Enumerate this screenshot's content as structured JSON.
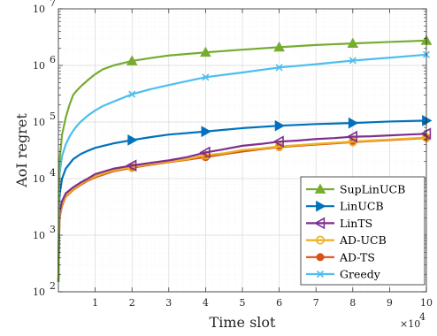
{
  "chart_data": {
    "type": "line",
    "title": "",
    "xlabel": "Time slot",
    "ylabel": "AoI regret",
    "x_multiplier_label": "×10",
    "x_multiplier_exp": "4",
    "xlim": [
      0,
      100000
    ],
    "ylim": [
      100,
      10000000
    ],
    "y_scale": "log",
    "grid": true,
    "legend_position": "bottom-right",
    "x_ticks": [
      {
        "value": 10000,
        "label": "1"
      },
      {
        "value": 20000,
        "label": "2"
      },
      {
        "value": 30000,
        "label": "3"
      },
      {
        "value": 40000,
        "label": "4"
      },
      {
        "value": 50000,
        "label": "5"
      },
      {
        "value": 60000,
        "label": "6"
      },
      {
        "value": 70000,
        "label": "7"
      },
      {
        "value": 80000,
        "label": "8"
      },
      {
        "value": 90000,
        "label": "9"
      },
      {
        "value": 100000,
        "label": "10"
      }
    ],
    "y_ticks": [
      {
        "value": 100,
        "base": "10",
        "exp": "2"
      },
      {
        "value": 1000,
        "base": "10",
        "exp": "3"
      },
      {
        "value": 10000,
        "base": "10",
        "exp": "4"
      },
      {
        "value": 100000,
        "base": "10",
        "exp": "5"
      },
      {
        "value": 1000000,
        "base": "10",
        "exp": "6"
      },
      {
        "value": 10000000,
        "base": "10",
        "exp": "7"
      }
    ],
    "series": [
      {
        "name": "SupLinUCB",
        "color": "#77AC30",
        "marker": "triangle-up",
        "x": [
          0,
          300,
          1000,
          2000,
          3000,
          4000,
          5000,
          6000,
          8000,
          10000,
          12000,
          15000,
          20000,
          25000,
          30000,
          40000,
          50000,
          60000,
          70000,
          80000,
          90000,
          100000
        ],
        "y": [
          150,
          20000,
          60000,
          120000,
          200000,
          300000,
          360000,
          420000,
          550000,
          700000,
          850000,
          1000000,
          1200000,
          1350000,
          1500000,
          1700000,
          1900000,
          2100000,
          2300000,
          2450000,
          2600000,
          2750000
        ],
        "marker_x": [
          20000,
          40000,
          60000,
          80000,
          100000
        ]
      },
      {
        "name": "LinUCB",
        "color": "#0072BD",
        "marker": "triangle-right",
        "x": [
          0,
          300,
          1000,
          2000,
          4000,
          6000,
          8000,
          10000,
          15000,
          20000,
          25000,
          30000,
          40000,
          50000,
          60000,
          70000,
          80000,
          90000,
          100000
        ],
        "y": [
          150,
          5000,
          10000,
          15000,
          22000,
          27000,
          31000,
          35000,
          42000,
          48000,
          54000,
          60000,
          68000,
          78000,
          86000,
          92000,
          96000,
          102000,
          106000
        ],
        "marker_x": [
          20000,
          40000,
          60000,
          80000,
          100000
        ]
      },
      {
        "name": "LinTS",
        "color": "#7E2F8E",
        "marker": "triangle-left",
        "x": [
          0,
          300,
          1000,
          2000,
          4000,
          6000,
          8000,
          10000,
          15000,
          20000,
          25000,
          30000,
          35000,
          40000,
          45000,
          50000,
          55000,
          60000,
          65000,
          70000,
          75000,
          80000,
          85000,
          90000,
          95000,
          100000
        ],
        "y": [
          150,
          2500,
          4000,
          5500,
          7000,
          8500,
          10000,
          12000,
          15000,
          17000,
          19000,
          21000,
          24000,
          29000,
          33000,
          38000,
          41000,
          45000,
          47000,
          50000,
          52000,
          55000,
          56000,
          58000,
          60000,
          62000
        ],
        "marker_x": [
          20000,
          40000,
          60000,
          80000,
          100000
        ]
      },
      {
        "name": "AD-UCB",
        "color": "#EDB120",
        "marker": "circle",
        "x": [
          0,
          300,
          1000,
          2000,
          4000,
          6000,
          8000,
          10000,
          15000,
          20000,
          25000,
          30000,
          35000,
          40000,
          45000,
          50000,
          55000,
          60000,
          65000,
          70000,
          75000,
          80000,
          85000,
          90000,
          95000,
          100000
        ],
        "y": [
          150,
          2200,
          3500,
          5000,
          6500,
          8000,
          9500,
          11000,
          14000,
          16000,
          18000,
          20000,
          22000,
          26000,
          28000,
          32000,
          34000,
          37000,
          39000,
          41000,
          43000,
          45000,
          47000,
          49000,
          51000,
          53000
        ],
        "marker_x": [
          20000,
          40000,
          60000,
          80000,
          100000
        ]
      },
      {
        "name": "AD-TS",
        "color": "#D95319",
        "marker": "circle-filled",
        "x": [
          0,
          300,
          1000,
          2000,
          4000,
          6000,
          8000,
          10000,
          15000,
          20000,
          25000,
          30000,
          35000,
          40000,
          45000,
          50000,
          55000,
          60000,
          65000,
          70000,
          75000,
          80000,
          85000,
          90000,
          95000,
          100000
        ],
        "y": [
          150,
          2000,
          3300,
          4800,
          6300,
          7700,
          9200,
          10500,
          13500,
          15500,
          17500,
          19500,
          21500,
          24000,
          27000,
          30000,
          33000,
          36000,
          38000,
          40000,
          42000,
          44000,
          46000,
          48000,
          50000,
          52000
        ],
        "marker_x": [
          20000,
          40000,
          60000,
          80000,
          100000
        ]
      },
      {
        "name": "Greedy",
        "color": "#4DBEEE",
        "marker": "x",
        "x": [
          0,
          300,
          1000,
          2000,
          3000,
          4000,
          5000,
          6000,
          8000,
          10000,
          12000,
          15000,
          20000,
          25000,
          30000,
          40000,
          50000,
          60000,
          70000,
          80000,
          90000,
          100000
        ],
        "y": [
          150,
          12000,
          25000,
          40000,
          55000,
          70000,
          85000,
          100000,
          130000,
          160000,
          190000,
          230000,
          310000,
          380000,
          450000,
          620000,
          750000,
          920000,
          1050000,
          1220000,
          1370000,
          1550000
        ],
        "marker_x": [
          20000,
          40000,
          60000,
          80000,
          100000
        ]
      }
    ]
  }
}
